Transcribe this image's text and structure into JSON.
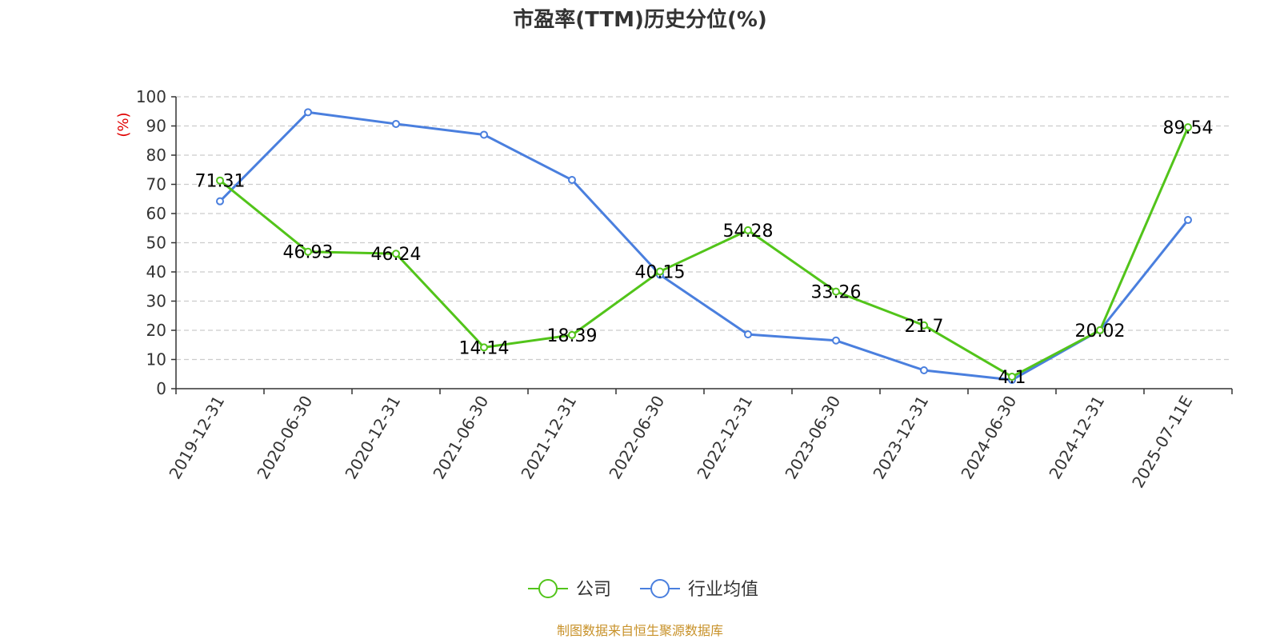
{
  "chart_data": {
    "type": "line",
    "title": "市盈率(TTM)历史分位(%)",
    "ylabel": "(%)",
    "xlabel": "",
    "ylim": [
      0,
      100
    ],
    "yticks": [
      0,
      10,
      20,
      30,
      40,
      50,
      60,
      70,
      80,
      90,
      100
    ],
    "categories": [
      "2019-12-31",
      "2020-06-30",
      "2020-12-31",
      "2021-06-30",
      "2021-12-31",
      "2022-06-30",
      "2022-12-31",
      "2023-06-30",
      "2023-12-31",
      "2024-06-30",
      "2024-12-31",
      "2025-07-11E"
    ],
    "grid": true,
    "legend_position": "bottom",
    "series": [
      {
        "name": "公司",
        "color": "#52c41a",
        "values": [
          71.31,
          46.93,
          46.24,
          14.14,
          18.39,
          40.15,
          54.28,
          33.26,
          21.7,
          4.1,
          20.02,
          89.54
        ],
        "labels": [
          "71.31",
          "46.93",
          "46.24",
          "14.14",
          "18.39",
          "40.15",
          "54.28",
          "33.26",
          "21.7",
          "4.1",
          "20.02",
          "89.54"
        ]
      },
      {
        "name": "行业均值",
        "color": "#4a7fde",
        "values": [
          64.2,
          94.7,
          90.7,
          87.0,
          71.5,
          39.0,
          18.6,
          16.5,
          6.3,
          3.0,
          20.0,
          57.8
        ]
      }
    ]
  },
  "footer": {
    "source": "制图数据来自恒生聚源数据库",
    "source_color": "#c8922a"
  },
  "colors": {
    "ylabel": "#e00000",
    "axis": "#333333",
    "grid": "#cccccc",
    "title": "#333333"
  }
}
